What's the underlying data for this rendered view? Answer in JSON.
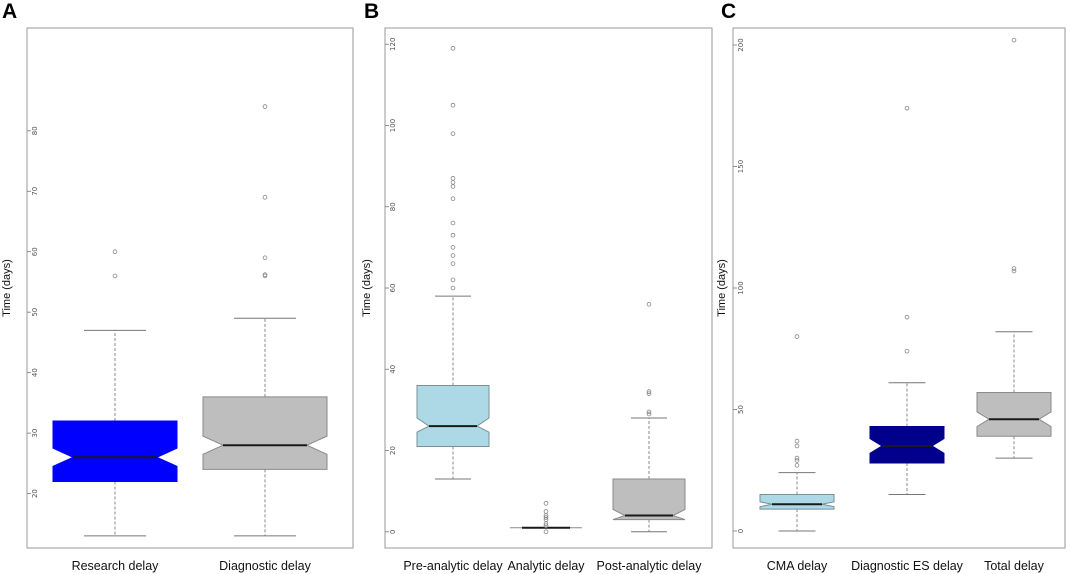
{
  "figure": {
    "panel_letters": [
      "A",
      "B",
      "C"
    ]
  },
  "chart_data": [
    {
      "panel": "A",
      "type": "box",
      "notched": true,
      "ylabel": "Time (days)",
      "ylim": [
        11,
        97
      ],
      "yticks": [
        20,
        30,
        40,
        50,
        60,
        70,
        80
      ],
      "categories": [
        "Research delay",
        "Diagnostic delay"
      ],
      "boxes": [
        {
          "name": "Research delay",
          "color": "#0000FF",
          "stroke": "#0000FF",
          "whisker_low": 13,
          "q1": 22,
          "median": 26,
          "q3": 32,
          "whisker_high": 47,
          "notch_low": 24.5,
          "notch_high": 27.5,
          "outliers": [
            56,
            60
          ]
        },
        {
          "name": "Diagnostic delay",
          "color": "#BEBEBE",
          "stroke": "#8a8a8a",
          "whisker_low": 13,
          "q1": 24,
          "median": 28,
          "q3": 36,
          "whisker_high": 49,
          "notch_low": 26.5,
          "notch_high": 29.5,
          "outliers": [
            56,
            56.2,
            59,
            69,
            84
          ]
        }
      ]
    },
    {
      "panel": "B",
      "type": "box",
      "notched": true,
      "ylabel": "Time (days)",
      "ylim": [
        -4,
        124
      ],
      "yticks": [
        0,
        20,
        40,
        60,
        80,
        100,
        120
      ],
      "categories": [
        "Pre-analytic delay",
        "Analytic delay",
        "Post-analytic delay"
      ],
      "boxes": [
        {
          "name": "Pre-analytic delay",
          "color": "#ADD8E6",
          "stroke": "#7a8f96",
          "whisker_low": 13,
          "q1": 21,
          "median": 26,
          "q3": 36,
          "whisker_high": 58,
          "notch_low": 24.5,
          "notch_high": 28,
          "outliers": [
            60,
            62,
            66,
            68,
            70,
            73,
            76,
            82,
            85,
            86,
            87,
            98,
            105,
            119
          ]
        },
        {
          "name": "Analytic delay",
          "color": "#BEBEBE",
          "stroke": "#8a8a8a",
          "whisker_low": 1,
          "q1": 1,
          "median": 1,
          "q3": 1,
          "whisker_high": 1,
          "notch_low": 1,
          "notch_high": 1,
          "outliers": [
            0,
            1.5,
            2,
            3,
            3.5,
            4,
            5,
            7
          ]
        },
        {
          "name": "Post-analytic delay",
          "color": "#BEBEBE",
          "stroke": "#8a8a8a",
          "whisker_low": 0,
          "q1": 3,
          "median": 4,
          "q3": 13,
          "whisker_high": 28,
          "notch_low": 3,
          "notch_high": 5.5,
          "outliers": [
            29,
            29.5,
            34,
            34.5,
            56
          ]
        }
      ]
    },
    {
      "panel": "C",
      "type": "box",
      "notched": true,
      "ylabel": "Time (days)",
      "ylim": [
        -7,
        207
      ],
      "yticks": [
        0,
        50,
        100,
        150,
        200
      ],
      "categories": [
        "CMA delay",
        "Diagnostic ES delay",
        "Total delay"
      ],
      "boxes": [
        {
          "name": "CMA delay",
          "color": "#ADD8E6",
          "stroke": "#7a8f96",
          "whisker_low": 0,
          "q1": 9,
          "median": 11,
          "q3": 15,
          "whisker_high": 24,
          "notch_low": 10,
          "notch_high": 12,
          "outliers": [
            27,
            29,
            30,
            35,
            37,
            80
          ]
        },
        {
          "name": "Diagnostic ES delay",
          "color": "#00008B",
          "stroke": "#00008B",
          "whisker_low": 15,
          "q1": 28,
          "median": 35,
          "q3": 43,
          "whisker_high": 61,
          "notch_low": 32,
          "notch_high": 38,
          "outliers": [
            74,
            88,
            174
          ]
        },
        {
          "name": "Total delay",
          "color": "#BEBEBE",
          "stroke": "#8a8a8a",
          "whisker_low": 30,
          "q1": 39,
          "median": 46,
          "q3": 57,
          "whisker_high": 82,
          "notch_low": 43,
          "notch_high": 49,
          "outliers": [
            107,
            108,
            202
          ]
        }
      ]
    }
  ]
}
